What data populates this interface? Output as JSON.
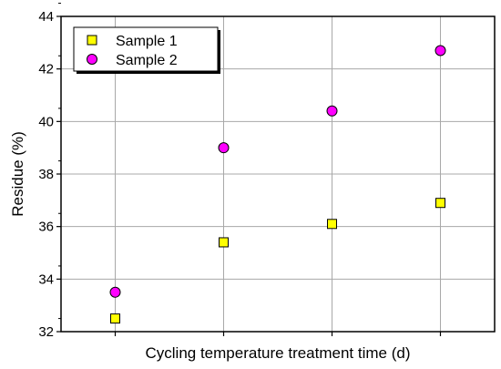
{
  "chart_data": {
    "type": "scatter",
    "title": "",
    "xlabel": "Cycling temperature treatment time (d)",
    "ylabel": "Residue (%)",
    "x_tick_labels": [],
    "x_positions": [
      1,
      2,
      3,
      4
    ],
    "xlim": [
      0.5,
      4.5
    ],
    "ylim": [
      32,
      44
    ],
    "y_ticks": [
      32,
      34,
      36,
      38,
      40,
      42,
      44
    ],
    "grid": true,
    "legend_position": "top-left",
    "series": [
      {
        "name": "Sample 1",
        "marker": "square",
        "color": "#ffff00",
        "values": [
          32.5,
          35.4,
          36.1,
          36.9
        ]
      },
      {
        "name": "Sample 2",
        "marker": "circle",
        "color": "#ff00ff",
        "values": [
          33.5,
          39.0,
          40.4,
          42.7
        ]
      }
    ]
  }
}
